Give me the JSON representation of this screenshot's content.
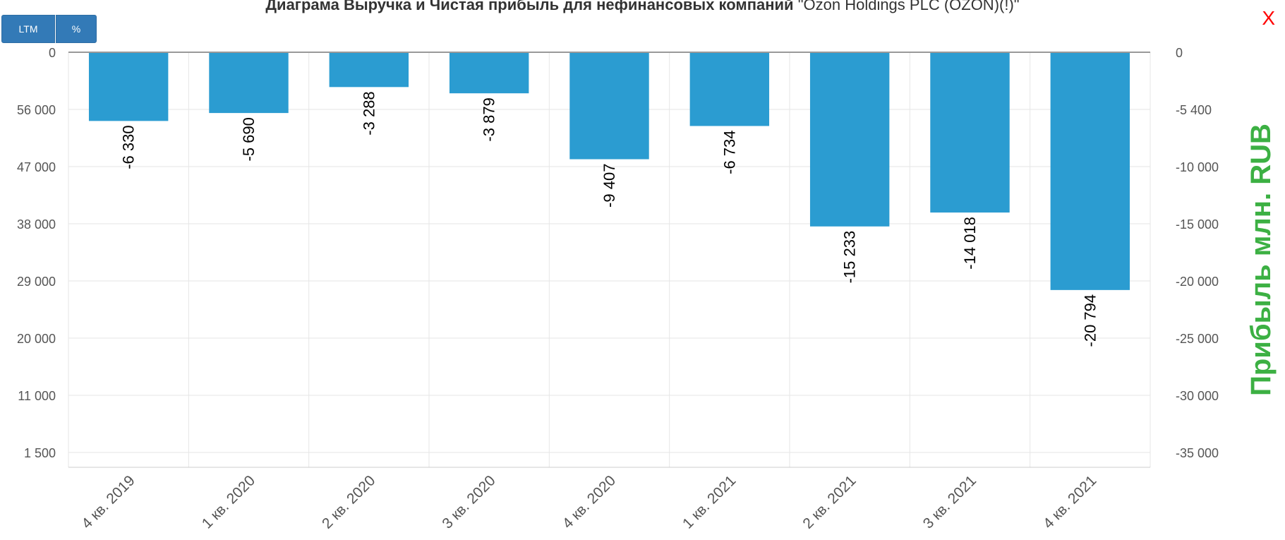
{
  "header": {
    "title_bold": "Диаграма Выручка и Чистая прибыль для нефинансовых компаний",
    "title_company": "\"Ozon Holdings PLC (OZON)(!)\""
  },
  "toolbar": {
    "ltm_label": "LTM",
    "percent_label": "%"
  },
  "close_label": "X",
  "chart_data": {
    "type": "bar",
    "categories": [
      "4 кв. 2019",
      "1 кв. 2020",
      "2 кв. 2020",
      "3 кв. 2020",
      "4 кв. 2020",
      "1 кв. 2021",
      "2 кв. 2021",
      "3 кв. 2021",
      "4 кв. 2021"
    ],
    "series": [
      {
        "values": [
          -6330,
          -5690,
          -3288,
          -3879,
          -9407,
          -6734,
          -15233,
          -14018,
          -20794
        ],
        "labels": [
          "-6 330",
          "-5 690",
          "-3 288",
          "-3 879",
          "-9 407",
          "-6 734",
          "-15 233",
          "-14 018",
          "-20 794"
        ],
        "color": "#2b9cd1"
      }
    ],
    "left_ticks": [
      "0",
      "56 000",
      "47 000",
      "38 000",
      "29 000",
      "20 000",
      "11 000",
      "1 500"
    ],
    "right_ticks": [
      "0",
      "-5 400",
      "-10 000",
      "-15 000",
      "-20 000",
      "-25 000",
      "-30 000",
      "-35 000"
    ],
    "right_tick_values": [
      0,
      -5400,
      -10000,
      -15000,
      -20000,
      -25000,
      -30000,
      -35000
    ],
    "ylabel_right": "Прибыль млн. RUB",
    "ylabel_right_color": "#3cb043",
    "grid": true
  }
}
